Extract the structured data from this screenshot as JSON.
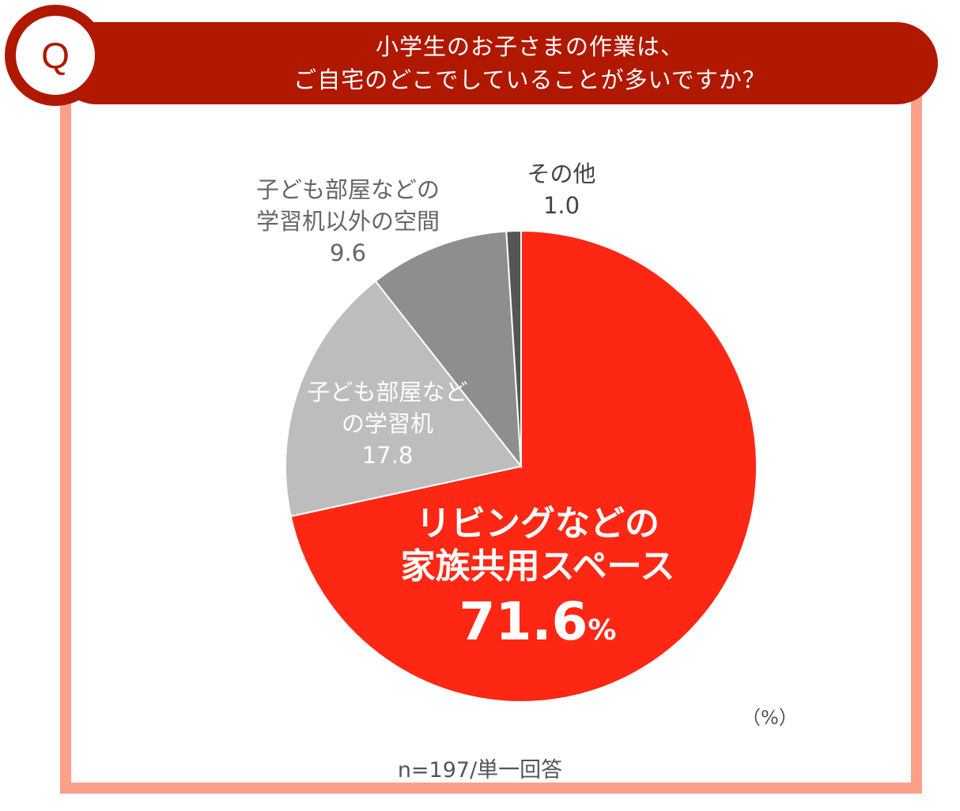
{
  "header": {
    "badge": "Q",
    "title_line1": "小学生のお子さまの作業は、",
    "title_line2": "ご自宅のどこでしていることが多いですか？"
  },
  "colors": {
    "frame": "#fca08a",
    "banner": "#b01800",
    "slice_main": "#fd2714",
    "slice_2": "#bdbdbd",
    "slice_3": "#8e8e8e",
    "slice_4": "#555555"
  },
  "chart_data": {
    "type": "pie",
    "unit": "（%）",
    "sample_note": "n=197/単一回答",
    "slices": [
      {
        "label_line1": "リビングなどの",
        "label_line2": "家族共用スペース",
        "value": 71.6,
        "value_text": "71.6",
        "value_unit": "%",
        "color": "#fd2714"
      },
      {
        "label_line1": "子ども部屋など",
        "label_line2": "の学習机",
        "value": 17.8,
        "value_text": "17.8",
        "color": "#bdbdbd"
      },
      {
        "label_line1": "子ども部屋などの",
        "label_line2": "学習机以外の空間",
        "value": 9.6,
        "value_text": "9.6",
        "color": "#8e8e8e"
      },
      {
        "label_line1": "その他",
        "value": 1.0,
        "value_text": "1.0",
        "color": "#555555"
      }
    ]
  }
}
